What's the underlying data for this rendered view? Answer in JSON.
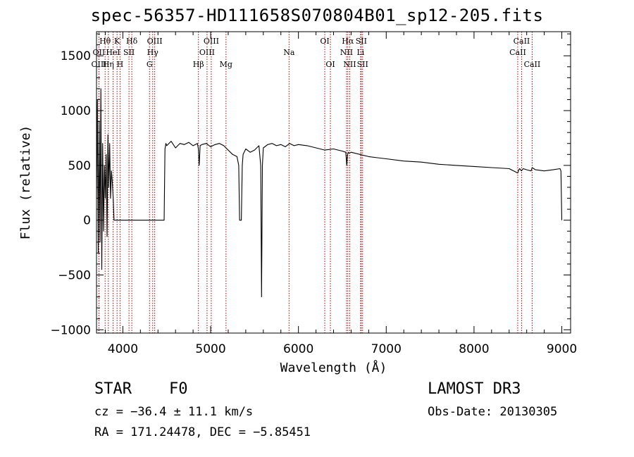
{
  "chart_data": {
    "type": "line",
    "title": "spec-56357-HD111658S070804B01_sp12-205.fits",
    "xlabel": "Wavelength (Å)",
    "ylabel": "Flux (relative)",
    "xlim": [
      3700,
      9100
    ],
    "ylim": [
      -1030,
      1720
    ],
    "xticks": [
      4000,
      5000,
      6000,
      7000,
      8000,
      9000
    ],
    "yticks": [
      -1000,
      -500,
      0,
      500,
      1000,
      1500
    ],
    "line_color": "#000000",
    "marker_color": "#b30000",
    "series": [
      {
        "name": "spectrum",
        "x": [
          3700,
          3710,
          3720,
          3730,
          3740,
          3750,
          3760,
          3770,
          3780,
          3790,
          3800,
          3810,
          3820,
          3830,
          3840,
          3850,
          3860,
          3870,
          3880,
          3890,
          3900,
          3920,
          3950,
          4000,
          4100,
          4200,
          4300,
          4400,
          4470,
          4480,
          4490,
          4500,
          4550,
          4600,
          4650,
          4700,
          4750,
          4800,
          4850,
          4860,
          4870,
          4880,
          4900,
          4950,
          5000,
          5050,
          5100,
          5150,
          5200,
          5250,
          5300,
          5320,
          5330,
          5340,
          5350,
          5360,
          5370,
          5400,
          5450,
          5500,
          5550,
          5570,
          5580,
          5590,
          5600,
          5650,
          5700,
          5750,
          5800,
          5850,
          5900,
          5950,
          6000,
          6100,
          6200,
          6300,
          6400,
          6500,
          6540,
          6550,
          6560,
          6570,
          6580,
          6600,
          6700,
          6800,
          6900,
          7000,
          7200,
          7400,
          7600,
          7800,
          8000,
          8200,
          8400,
          8498,
          8510,
          8520,
          8540,
          8560,
          8600,
          8650,
          8662,
          8680,
          8700,
          8800,
          8900,
          8980,
          8990,
          9000
        ],
        "y": [
          200,
          1100,
          -300,
          900,
          -200,
          1200,
          -450,
          700,
          -100,
          500,
          200,
          600,
          -150,
          780,
          300,
          700,
          200,
          450,
          350,
          200,
          0,
          0,
          0,
          0,
          0,
          0,
          0,
          0,
          0,
          650,
          700,
          680,
          720,
          660,
          700,
          690,
          710,
          680,
          700,
          650,
          500,
          680,
          690,
          700,
          670,
          690,
          700,
          680,
          640,
          600,
          580,
          500,
          0,
          0,
          0,
          500,
          600,
          650,
          620,
          640,
          680,
          500,
          -700,
          500,
          660,
          690,
          700,
          680,
          690,
          670,
          700,
          680,
          690,
          680,
          660,
          640,
          650,
          630,
          620,
          500,
          600,
          620,
          610,
          620,
          600,
          580,
          570,
          560,
          540,
          530,
          510,
          500,
          490,
          480,
          470,
          430,
          460,
          470,
          450,
          470,
          460,
          450,
          480,
          470,
          460,
          450,
          460,
          470,
          450,
          0
        ]
      }
    ],
    "spectral_lines": [
      {
        "label": "Hθ",
        "x": 3798,
        "row": 1
      },
      {
        "label": "OII",
        "x": 3727,
        "row": 2
      },
      {
        "label": "OIII",
        "x": 3728,
        "row": 3
      },
      {
        "label": "Hη",
        "x": 3835,
        "row": 3
      },
      {
        "label": "K",
        "x": 3934,
        "row": 1
      },
      {
        "label": "HeI",
        "x": 3889,
        "row": 2
      },
      {
        "label": "H",
        "x": 3968,
        "row": 3
      },
      {
        "label": "Hδ",
        "x": 4102,
        "row": 1
      },
      {
        "label": "SII",
        "x": 4070,
        "row": 2
      },
      {
        "label": "OIII",
        "x": 4363,
        "row": 1
      },
      {
        "label": "Hγ",
        "x": 4340,
        "row": 2
      },
      {
        "label": "G",
        "x": 4304,
        "row": 3
      },
      {
        "label": "Hβ",
        "x": 4861,
        "row": 3
      },
      {
        "label": "OIII",
        "x": 5007,
        "row": 1
      },
      {
        "label": "OIII",
        "x": 4959,
        "row": 2
      },
      {
        "label": "Mg",
        "x": 5175,
        "row": 3
      },
      {
        "label": "Na",
        "x": 5893,
        "row": 2
      },
      {
        "label": "OI",
        "x": 6300,
        "row": 1
      },
      {
        "label": "OI",
        "x": 6364,
        "row": 3
      },
      {
        "label": "Hα",
        "x": 6563,
        "row": 1
      },
      {
        "label": "NII",
        "x": 6548,
        "row": 2
      },
      {
        "label": "NII",
        "x": 6584,
        "row": 3
      },
      {
        "label": "SII",
        "x": 6716,
        "row": 1
      },
      {
        "label": "Li",
        "x": 6708,
        "row": 2
      },
      {
        "label": "SII",
        "x": 6731,
        "row": 3
      },
      {
        "label": "CaII",
        "x": 8542,
        "row": 1
      },
      {
        "label": "CaII",
        "x": 8498,
        "row": 2
      },
      {
        "label": "CaII",
        "x": 8662,
        "row": 3
      }
    ]
  },
  "info": {
    "object_class": "STAR",
    "subclass": "F0",
    "survey": "LAMOST DR3",
    "redshift": "cz = −36.4 ± 11.1 km/s",
    "obs_date": "Obs-Date: 20130305",
    "coords": "RA = 171.24478, DEC =  −5.85451"
  }
}
